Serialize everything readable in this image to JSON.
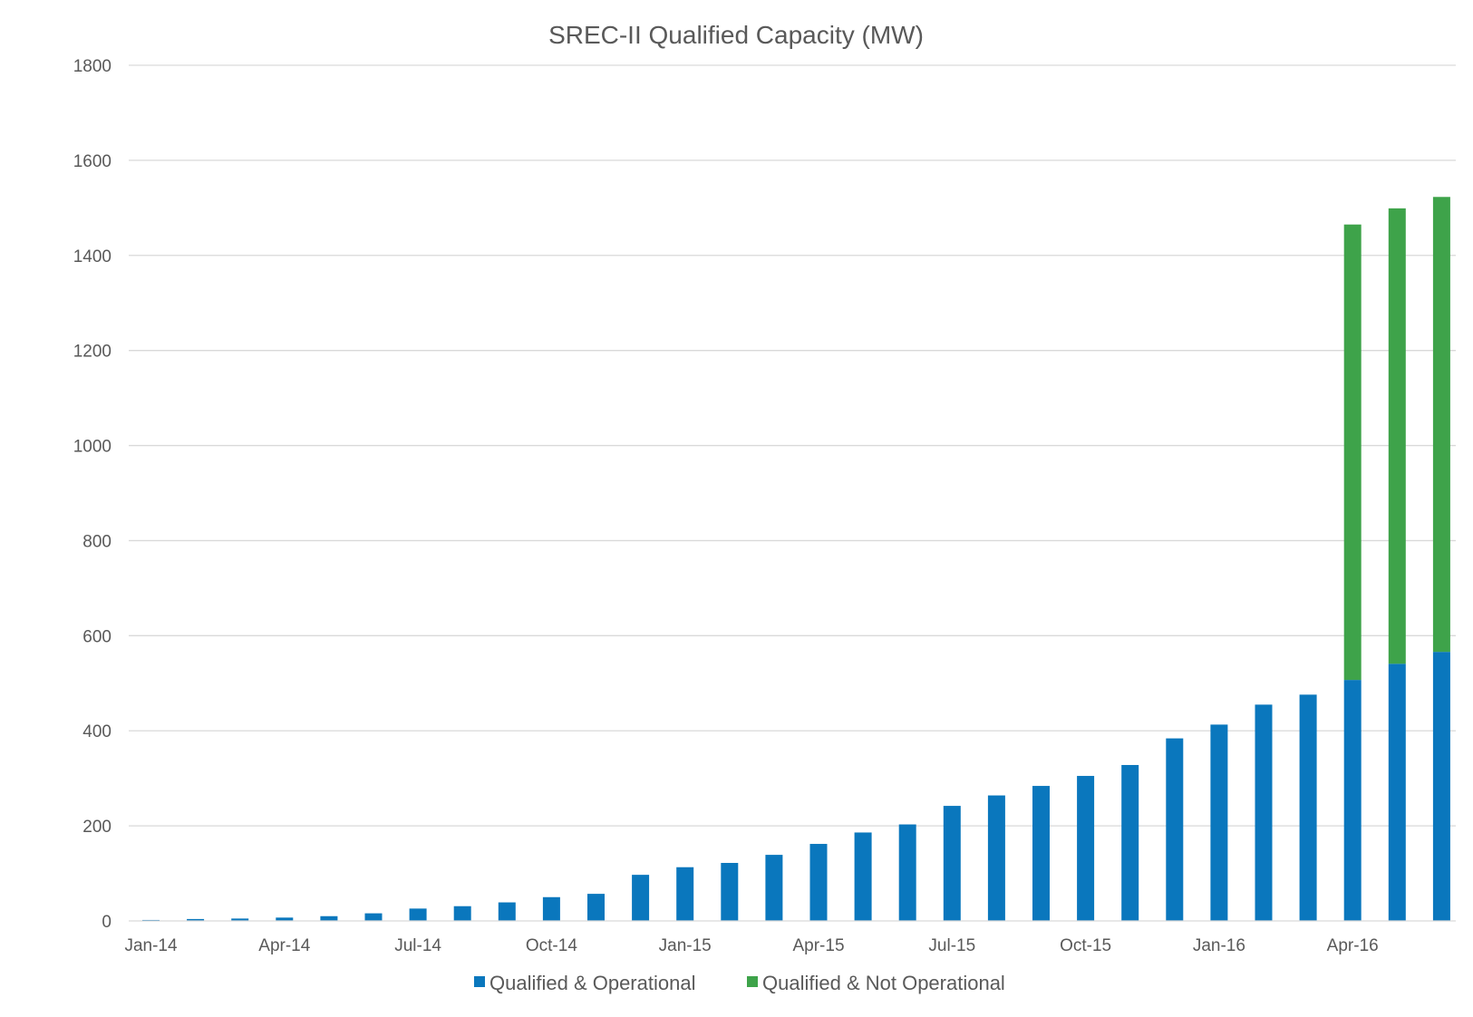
{
  "chart_data": {
    "type": "bar",
    "stacked": true,
    "title": "SREC-II Qualified Capacity (MW)",
    "xlabel": "",
    "ylabel": "",
    "ylim": [
      0,
      1800
    ],
    "y_ticks": [
      0,
      200,
      400,
      600,
      800,
      1000,
      1200,
      1400,
      1600,
      1800
    ],
    "grid": true,
    "legend_position": "bottom",
    "categories": [
      "Jan-14",
      "Feb-14",
      "Mar-14",
      "Apr-14",
      "May-14",
      "Jun-14",
      "Jul-14",
      "Aug-14",
      "Sep-14",
      "Oct-14",
      "Nov-14",
      "Dec-14",
      "Jan-15",
      "Feb-15",
      "Mar-15",
      "Apr-15",
      "May-15",
      "Jun-15",
      "Jul-15",
      "Aug-15",
      "Sep-15",
      "Oct-15",
      "Nov-15",
      "Dec-15",
      "Jan-16",
      "Feb-16",
      "Mar-16",
      "Apr-16",
      "May-16",
      "Jun-16"
    ],
    "x_tick_labels": [
      "Jan-14",
      "Apr-14",
      "Jul-14",
      "Oct-14",
      "Jan-15",
      "Apr-15",
      "Jul-15",
      "Oct-15",
      "Jan-16",
      "Apr-16"
    ],
    "series": [
      {
        "name": "Qualified & Operational",
        "color": "#0a77bd",
        "values": [
          2,
          4,
          5,
          7,
          10,
          16,
          26,
          31,
          39,
          50,
          57,
          97,
          113,
          122,
          139,
          162,
          186,
          203,
          242,
          264,
          284,
          305,
          328,
          384,
          413,
          455,
          476,
          507,
          541,
          566
        ]
      },
      {
        "name": "Qualified & Not Operational",
        "color": "#3ea34a",
        "values": [
          0,
          0,
          0,
          0,
          0,
          0,
          0,
          0,
          0,
          0,
          0,
          0,
          0,
          0,
          0,
          0,
          0,
          0,
          0,
          0,
          0,
          0,
          0,
          0,
          0,
          0,
          0,
          958,
          958,
          957
        ]
      }
    ]
  }
}
